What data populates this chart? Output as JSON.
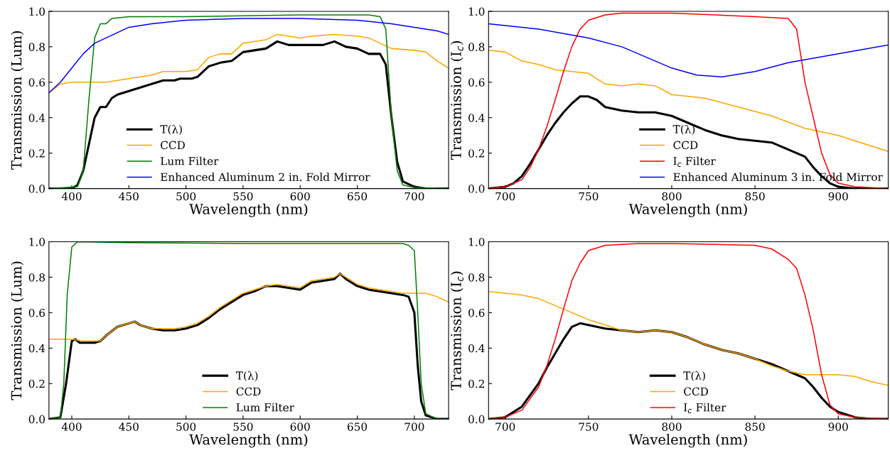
{
  "chart_data": [
    {
      "type": "line",
      "xlabel": "Wavelength (nm)",
      "ylabel": "Transmission (Lum)",
      "xlim": [
        380,
        730
      ],
      "xticks": [
        400,
        450,
        500,
        550,
        600,
        650,
        700
      ],
      "ylim": [
        0,
        1
      ],
      "yticks": [
        {
          "value": 0,
          "label": "0.0"
        },
        {
          "value": 0.2,
          "label": "0.2"
        },
        {
          "value": 0.4,
          "label": "0.4"
        },
        {
          "value": 0.6,
          "label": "0.6"
        },
        {
          "value": 0.8,
          "label": "0.8"
        },
        {
          "value": 1,
          "label": "1.0"
        }
      ],
      "legend": "bottom",
      "series": [
        {
          "name": "T(λ)",
          "color": "#000000",
          "x": [
            380,
            400,
            405,
            410,
            415,
            420,
            425,
            430,
            435,
            440,
            450,
            460,
            470,
            480,
            490,
            495,
            505,
            510,
            520,
            530,
            540,
            550,
            560,
            570,
            580,
            590,
            600,
            610,
            620,
            630,
            640,
            650,
            660,
            670,
            675,
            680,
            685,
            690,
            700,
            710,
            730
          ],
          "values": [
            0,
            0,
            0.02,
            0.1,
            0.25,
            0.4,
            0.46,
            0.46,
            0.51,
            0.53,
            0.55,
            0.57,
            0.59,
            0.61,
            0.61,
            0.62,
            0.62,
            0.63,
            0.69,
            0.71,
            0.72,
            0.77,
            0.78,
            0.79,
            0.83,
            0.81,
            0.81,
            0.81,
            0.81,
            0.83,
            0.8,
            0.79,
            0.76,
            0.76,
            0.7,
            0.4,
            0.15,
            0.04,
            0.01,
            0,
            0
          ]
        },
        {
          "name": "CCD",
          "color": "#ffa500",
          "x": [
            380,
            390,
            400,
            420,
            430,
            450,
            470,
            480,
            500,
            510,
            520,
            530,
            540,
            550,
            560,
            570,
            580,
            590,
            600,
            610,
            630,
            650,
            660,
            670,
            680,
            700,
            710,
            720,
            730
          ],
          "values": [
            0.54,
            0.59,
            0.6,
            0.6,
            0.6,
            0.62,
            0.64,
            0.66,
            0.66,
            0.67,
            0.74,
            0.76,
            0.76,
            0.82,
            0.83,
            0.84,
            0.87,
            0.86,
            0.85,
            0.86,
            0.87,
            0.86,
            0.85,
            0.82,
            0.79,
            0.78,
            0.77,
            0.72,
            0.68
          ]
        },
        {
          "name": "Lum Filter",
          "color": "#008000",
          "x": [
            380,
            405,
            410,
            415,
            420,
            425,
            430,
            435,
            450,
            500,
            600,
            660,
            670,
            675,
            680,
            685,
            690,
            700,
            730
          ],
          "values": [
            0,
            0.01,
            0.1,
            0.5,
            0.85,
            0.93,
            0.93,
            0.96,
            0.97,
            0.97,
            0.98,
            0.98,
            0.97,
            0.9,
            0.4,
            0.1,
            0.02,
            0.005,
            0
          ]
        },
        {
          "name": "Enhanced Aluminum 2 in. Fold Mirror",
          "color": "#0000ff",
          "x": [
            380,
            390,
            400,
            410,
            420,
            430,
            440,
            450,
            470,
            500,
            550,
            600,
            650,
            680,
            700,
            720,
            730
          ],
          "values": [
            0.54,
            0.6,
            0.68,
            0.76,
            0.82,
            0.85,
            0.88,
            0.91,
            0.93,
            0.95,
            0.96,
            0.96,
            0.95,
            0.93,
            0.91,
            0.89,
            0.87
          ]
        }
      ]
    },
    {
      "type": "line",
      "xlabel": "Wavelength (nm)",
      "ylabel": "Transmission (I$_{c}$)",
      "xlim": [
        690,
        930
      ],
      "xticks": [
        700,
        750,
        800,
        850,
        900
      ],
      "ylim": [
        0,
        1
      ],
      "yticks": [
        {
          "value": 0,
          "label": "0.0"
        },
        {
          "value": 0.2,
          "label": "0.2"
        },
        {
          "value": 0.4,
          "label": "0.4"
        },
        {
          "value": 0.6,
          "label": "0.6"
        },
        {
          "value": 0.8,
          "label": "0.8"
        },
        {
          "value": 1,
          "label": "1.0"
        }
      ],
      "legend": "bottom right",
      "series": [
        {
          "name": "T(λ)",
          "color": "#000000",
          "x": [
            690,
            700,
            705,
            710,
            715,
            720,
            725,
            730,
            735,
            740,
            745,
            750,
            755,
            760,
            770,
            780,
            790,
            800,
            810,
            820,
            830,
            840,
            850,
            860,
            870,
            880,
            885,
            890,
            895,
            900,
            910,
            930
          ],
          "values": [
            0,
            0.01,
            0.03,
            0.07,
            0.14,
            0.22,
            0.3,
            0.37,
            0.43,
            0.48,
            0.52,
            0.52,
            0.5,
            0.46,
            0.44,
            0.43,
            0.43,
            0.41,
            0.37,
            0.33,
            0.3,
            0.28,
            0.27,
            0.26,
            0.22,
            0.18,
            0.12,
            0.07,
            0.03,
            0.01,
            0,
            0
          ]
        },
        {
          "name": "CCD",
          "color": "#ffa500",
          "x": [
            690,
            700,
            710,
            720,
            730,
            740,
            750,
            760,
            770,
            780,
            790,
            800,
            820,
            840,
            860,
            880,
            900,
            920,
            930
          ],
          "values": [
            0.78,
            0.77,
            0.72,
            0.7,
            0.67,
            0.66,
            0.65,
            0.59,
            0.58,
            0.59,
            0.58,
            0.53,
            0.51,
            0.46,
            0.41,
            0.34,
            0.3,
            0.24,
            0.21
          ]
        },
        {
          "name": "I$_{c}$ Filter",
          "color": "#ff0000",
          "x": [
            690,
            700,
            710,
            715,
            720,
            725,
            730,
            735,
            740,
            745,
            750,
            760,
            770,
            800,
            850,
            870,
            875,
            880,
            885,
            890,
            895,
            900,
            910,
            930
          ],
          "values": [
            0,
            0.01,
            0.05,
            0.12,
            0.22,
            0.35,
            0.5,
            0.66,
            0.8,
            0.9,
            0.95,
            0.98,
            0.99,
            0.99,
            0.97,
            0.96,
            0.9,
            0.6,
            0.4,
            0.2,
            0.08,
            0.03,
            0.01,
            0
          ]
        },
        {
          "name": "Enhanced Aluminum 3 in. Fold Mirror",
          "color": "#0000ff",
          "x": [
            690,
            720,
            750,
            770,
            790,
            800,
            815,
            830,
            850,
            870,
            900,
            930
          ],
          "values": [
            0.93,
            0.9,
            0.85,
            0.8,
            0.72,
            0.68,
            0.64,
            0.63,
            0.66,
            0.71,
            0.76,
            0.81
          ]
        }
      ]
    },
    {
      "type": "line",
      "xlabel": "Wavelength (nm)",
      "ylabel": "Transmission (Lum)",
      "xlim": [
        380,
        730
      ],
      "xticks": [
        400,
        450,
        500,
        550,
        600,
        650,
        700
      ],
      "ylim": [
        0,
        1
      ],
      "yticks": [
        {
          "value": 0,
          "label": "0.0"
        },
        {
          "value": 0.2,
          "label": "0.2"
        },
        {
          "value": 0.4,
          "label": "0.4"
        },
        {
          "value": 0.6,
          "label": "0.6"
        },
        {
          "value": 0.8,
          "label": "0.8"
        },
        {
          "value": 1,
          "label": "1.0"
        }
      ],
      "legend": "bottom",
      "series": [
        {
          "name": "T(λ)",
          "color": "#000000",
          "x": [
            380,
            390,
            395,
            400,
            403,
            407,
            410,
            420,
            425,
            430,
            440,
            450,
            455,
            460,
            470,
            480,
            490,
            500,
            510,
            520,
            530,
            540,
            550,
            560,
            570,
            580,
            590,
            600,
            610,
            620,
            630,
            635,
            640,
            650,
            660,
            670,
            680,
            690,
            695,
            700,
            703,
            706,
            710,
            720,
            730
          ],
          "values": [
            0,
            0.01,
            0.2,
            0.44,
            0.45,
            0.43,
            0.43,
            0.43,
            0.44,
            0.47,
            0.52,
            0.54,
            0.55,
            0.53,
            0.51,
            0.5,
            0.5,
            0.51,
            0.53,
            0.57,
            0.62,
            0.66,
            0.7,
            0.72,
            0.75,
            0.75,
            0.74,
            0.73,
            0.77,
            0.78,
            0.79,
            0.82,
            0.79,
            0.75,
            0.73,
            0.72,
            0.71,
            0.7,
            0.69,
            0.6,
            0.3,
            0.1,
            0.02,
            0,
            0
          ]
        },
        {
          "name": "CCD",
          "color": "#ffa500",
          "x": [
            380,
            400,
            410,
            420,
            425,
            430,
            440,
            450,
            455,
            460,
            470,
            480,
            490,
            500,
            510,
            520,
            530,
            540,
            550,
            560,
            570,
            580,
            590,
            600,
            610,
            620,
            630,
            635,
            640,
            650,
            660,
            670,
            680,
            690,
            700,
            710,
            720,
            730
          ],
          "values": [
            0.45,
            0.45,
            0.44,
            0.44,
            0.44,
            0.47,
            0.52,
            0.54,
            0.55,
            0.53,
            0.51,
            0.51,
            0.51,
            0.52,
            0.54,
            0.58,
            0.63,
            0.67,
            0.71,
            0.73,
            0.75,
            0.76,
            0.75,
            0.74,
            0.78,
            0.79,
            0.8,
            0.82,
            0.8,
            0.76,
            0.74,
            0.73,
            0.72,
            0.71,
            0.71,
            0.71,
            0.69,
            0.66
          ]
        },
        {
          "name": "Lum Filter",
          "color": "#008000",
          "x": [
            380,
            390,
            393,
            396,
            400,
            405,
            450,
            550,
            650,
            690,
            695,
            700,
            703,
            706,
            710,
            720,
            730
          ],
          "values": [
            0,
            0.01,
            0.2,
            0.7,
            0.97,
            1.0,
            0.995,
            0.99,
            0.99,
            0.99,
            0.98,
            0.95,
            0.6,
            0.2,
            0.03,
            0,
            0
          ]
        }
      ]
    },
    {
      "type": "line",
      "xlabel": "Wavelength (nm)",
      "ylabel": "Transmission (I$_{c}$)",
      "xlim": [
        690,
        930
      ],
      "xticks": [
        700,
        750,
        800,
        850,
        900
      ],
      "ylim": [
        0,
        1
      ],
      "yticks": [
        {
          "value": 0,
          "label": "0.0"
        },
        {
          "value": 0.2,
          "label": "0.2"
        },
        {
          "value": 0.4,
          "label": "0.4"
        },
        {
          "value": 0.6,
          "label": "0.6"
        },
        {
          "value": 0.8,
          "label": "0.8"
        },
        {
          "value": 1,
          "label": "1.0"
        }
      ],
      "legend": "bottom",
      "series": [
        {
          "name": "T(λ)",
          "color": "#000000",
          "x": [
            690,
            700,
            710,
            720,
            725,
            730,
            735,
            740,
            745,
            750,
            760,
            770,
            780,
            790,
            800,
            810,
            820,
            830,
            840,
            850,
            860,
            870,
            880,
            885,
            890,
            895,
            900,
            910,
            920,
            930
          ],
          "values": [
            0,
            0.01,
            0.07,
            0.2,
            0.29,
            0.37,
            0.45,
            0.52,
            0.54,
            0.53,
            0.51,
            0.5,
            0.49,
            0.5,
            0.49,
            0.46,
            0.42,
            0.39,
            0.37,
            0.34,
            0.31,
            0.27,
            0.23,
            0.18,
            0.12,
            0.07,
            0.04,
            0.01,
            0,
            0
          ]
        },
        {
          "name": "CCD",
          "color": "#ffa500",
          "x": [
            690,
            710,
            720,
            730,
            740,
            750,
            760,
            770,
            780,
            790,
            800,
            810,
            820,
            830,
            840,
            850,
            860,
            870,
            880,
            900,
            910,
            920,
            930
          ],
          "values": [
            0.72,
            0.7,
            0.68,
            0.64,
            0.6,
            0.56,
            0.53,
            0.5,
            0.49,
            0.5,
            0.49,
            0.46,
            0.42,
            0.39,
            0.37,
            0.34,
            0.3,
            0.27,
            0.25,
            0.25,
            0.24,
            0.21,
            0.19
          ]
        },
        {
          "name": "I$_{c}$ Filter",
          "color": "#ff0000",
          "x": [
            690,
            700,
            710,
            720,
            725,
            730,
            735,
            740,
            745,
            750,
            760,
            780,
            800,
            850,
            860,
            870,
            875,
            880,
            885,
            890,
            895,
            900,
            910,
            930
          ],
          "values": [
            0,
            0.01,
            0.05,
            0.18,
            0.3,
            0.45,
            0.62,
            0.78,
            0.88,
            0.95,
            0.98,
            0.99,
            0.99,
            0.98,
            0.96,
            0.9,
            0.85,
            0.7,
            0.5,
            0.25,
            0.08,
            0.03,
            0.01,
            0
          ]
        }
      ]
    }
  ]
}
